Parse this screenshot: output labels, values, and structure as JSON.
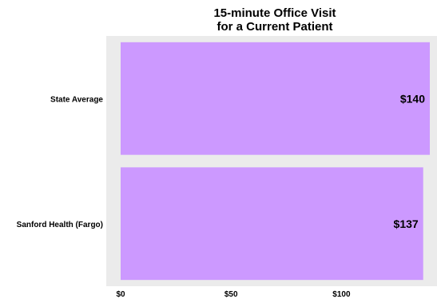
{
  "chart_data": {
    "type": "bar",
    "orientation": "horizontal",
    "title": "15-minute Office Visit\nfor a Current Patient",
    "categories": [
      "State Average",
      "Sanford Health (Fargo)"
    ],
    "values": [
      140,
      137
    ],
    "data_labels": [
      "$140",
      "$137"
    ],
    "x_ticks": [
      {
        "value": 0,
        "label": "$0"
      },
      {
        "value": 50,
        "label": "$50"
      },
      {
        "value": 100,
        "label": "$100"
      }
    ],
    "xlim": [
      0,
      140
    ],
    "bar_color": "#cc99ff",
    "panel_color": "#ebebeb",
    "grid": false,
    "xlabel": "",
    "ylabel": ""
  }
}
